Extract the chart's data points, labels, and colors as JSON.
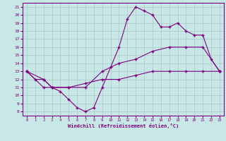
{
  "line1_x": [
    0,
    1,
    2,
    3,
    4,
    5,
    6,
    7,
    8,
    9,
    10,
    11,
    12,
    13,
    14,
    15,
    16,
    17,
    18,
    19,
    20,
    21,
    22,
    23
  ],
  "line1_y": [
    13,
    12,
    12,
    11,
    10.5,
    9.5,
    8.5,
    8,
    8.5,
    11,
    13.5,
    16,
    19.5,
    21,
    20.5,
    20,
    18.5,
    18.5,
    19,
    18,
    17.5,
    17.5,
    14.5,
    13
  ],
  "line2_x": [
    0,
    2,
    3,
    5,
    7,
    9,
    11,
    13,
    15,
    17,
    19,
    21,
    23
  ],
  "line2_y": [
    13,
    12,
    11,
    11,
    11,
    13,
    14,
    14.5,
    15.5,
    16,
    16,
    16,
    13
  ],
  "line3_x": [
    0,
    2,
    3,
    5,
    7,
    9,
    11,
    13,
    15,
    17,
    19,
    21,
    23
  ],
  "line3_y": [
    13,
    11,
    11,
    11,
    11.5,
    12,
    12,
    12.5,
    13,
    13,
    13,
    13,
    13
  ],
  "line_color": "#800080",
  "bg_color": "#c8e8e8",
  "grid_color": "#a8c8c8",
  "xlabel": "Windchill (Refroidissement éolien,°C)",
  "xlim": [
    -0.5,
    23.5
  ],
  "ylim": [
    7.5,
    21.5
  ],
  "xticks": [
    0,
    1,
    2,
    3,
    4,
    5,
    6,
    7,
    8,
    9,
    10,
    11,
    12,
    13,
    14,
    15,
    16,
    17,
    18,
    19,
    20,
    21,
    22,
    23
  ],
  "yticks": [
    8,
    9,
    10,
    11,
    12,
    13,
    14,
    15,
    16,
    17,
    18,
    19,
    20,
    21
  ],
  "marker": "+"
}
